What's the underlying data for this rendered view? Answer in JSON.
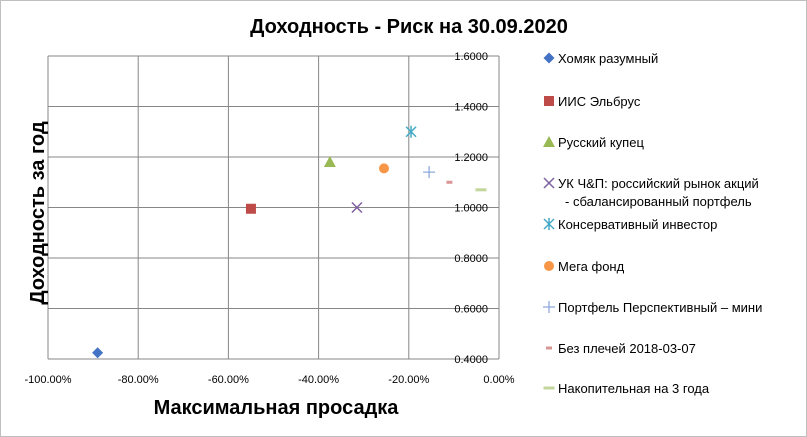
{
  "chart_data": {
    "type": "scatter",
    "title": "Доходность - Риск на 30.09.2020",
    "xlabel": "Максимальная просадка",
    "ylabel": "Доходность за год",
    "xlim": [
      -1.0,
      0.0
    ],
    "ylim": [
      0.4,
      1.6
    ],
    "x_ticks": [
      -1.0,
      -0.8,
      -0.6,
      -0.4,
      -0.2,
      0.0
    ],
    "x_tick_labels": [
      "-100.00%",
      "-80.00%",
      "-60.00%",
      "-40.00%",
      "-20.00%",
      "0.00%"
    ],
    "y_ticks": [
      0.4,
      0.6,
      0.8,
      1.0,
      1.2,
      1.4,
      1.6
    ],
    "y_tick_labels": [
      "0.4000",
      "0.6000",
      "0.8000",
      "1.0000",
      "1.2000",
      "1.4000",
      "1.6000"
    ],
    "grid": true,
    "legend_position": "right",
    "series": [
      {
        "name": "Хомяк разумный",
        "marker": "diamond",
        "color": "#4472C4",
        "x": -0.89,
        "y": 0.425
      },
      {
        "name": "ИИС Эльбрус",
        "marker": "square",
        "color": "#BE4B48",
        "x": -0.55,
        "y": 0.995
      },
      {
        "name": "Русский купец",
        "marker": "triangle",
        "color": "#98B954",
        "x": -0.375,
        "y": 1.18
      },
      {
        "name": "УК Ч&П: российский рынок акций - сбалансированный портфель",
        "legend_lines": [
          "УК Ч&П: российский рынок акций",
          "- сбалансированный портфель"
        ],
        "marker": "x",
        "color": "#7D60A0",
        "x": -0.315,
        "y": 1.0
      },
      {
        "name": "Консервативный инвестор",
        "marker": "star",
        "color": "#46AAC5",
        "x": -0.195,
        "y": 1.3
      },
      {
        "name": "Мега фонд",
        "marker": "circle",
        "color": "#F79646",
        "x": -0.255,
        "y": 1.155
      },
      {
        "name": "Портфель Перспективный – мини",
        "marker": "plus",
        "color": "#8EA9DB",
        "x": -0.155,
        "y": 1.14
      },
      {
        "name": "Без плечей 2018-03-07",
        "marker": "dash",
        "color": "#D99694",
        "x": -0.11,
        "y": 1.1
      },
      {
        "name": "Накопительная на 3 года",
        "marker": "longdash",
        "color": "#C3D69B",
        "x": -0.04,
        "y": 1.07
      }
    ]
  }
}
